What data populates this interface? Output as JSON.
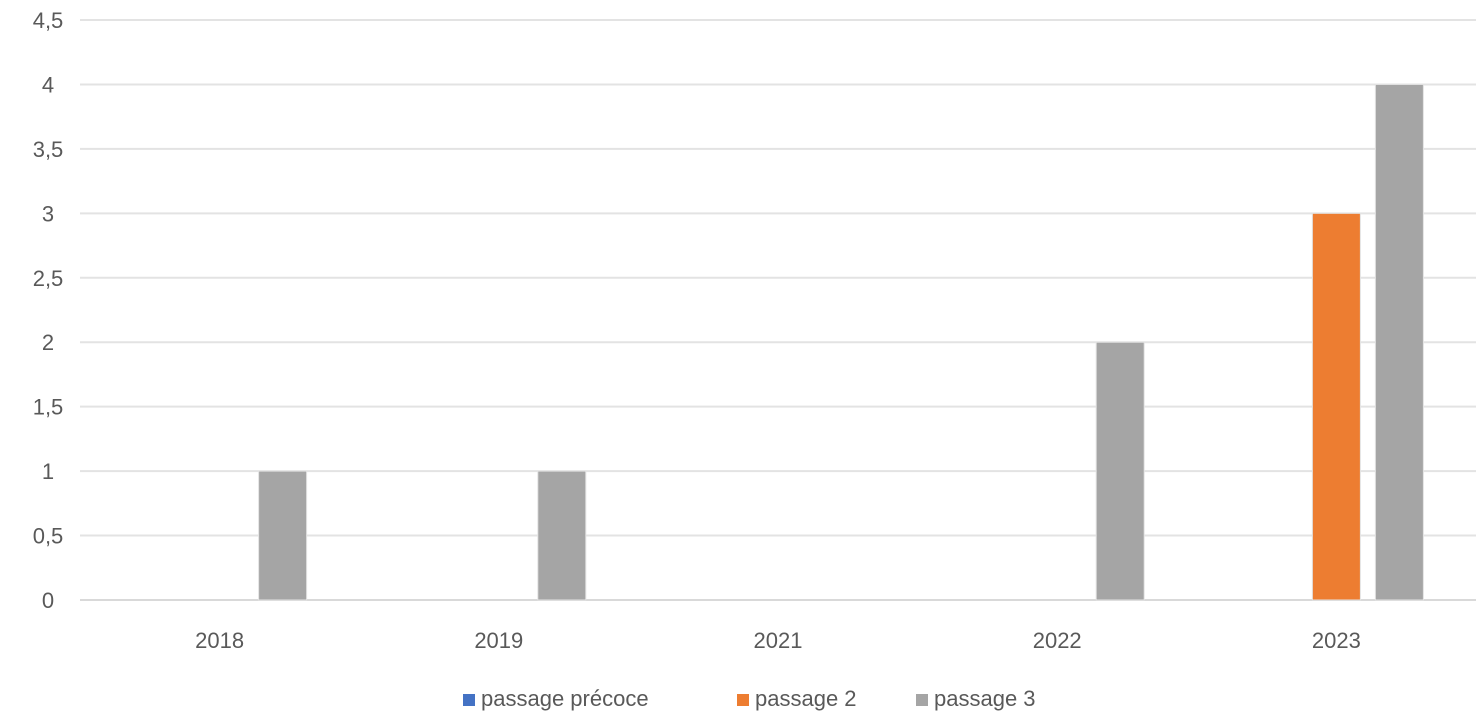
{
  "chart_data": {
    "type": "bar",
    "categories": [
      "2018",
      "2019",
      "2021",
      "2022",
      "2023"
    ],
    "series": [
      {
        "name": "passage précoce",
        "color": "#4472C4",
        "values": [
          0,
          0,
          0,
          0,
          0
        ]
      },
      {
        "name": "passage 2",
        "color": "#ED7D31",
        "values": [
          0,
          0,
          0,
          0,
          3
        ]
      },
      {
        "name": "passage 3",
        "color": "#A5A5A5",
        "values": [
          1,
          1,
          0,
          2,
          4
        ]
      }
    ],
    "y_ticks": [
      "0",
      "0,5",
      "1",
      "1,5",
      "2",
      "2,5",
      "3",
      "3,5",
      "4",
      "4,5"
    ],
    "ylim": [
      0,
      4.5
    ],
    "grid": true,
    "legend_position": "bottom"
  }
}
